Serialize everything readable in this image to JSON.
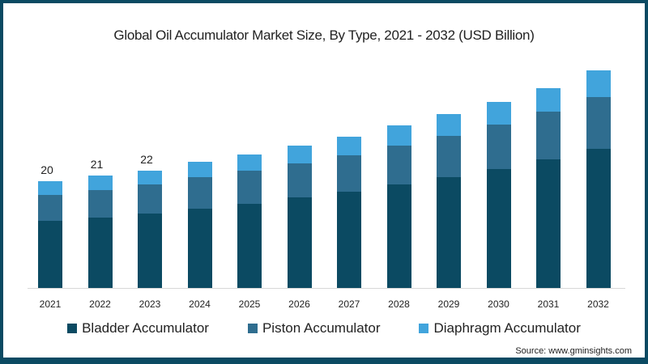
{
  "title": "Global Oil Accumulator Market Size, By Type, 2021 - 2032 (USD Billion)",
  "source": "Source: www.gminsights.com",
  "colors": {
    "bladder": "#0b4a62",
    "piston": "#2f6d8f",
    "diaphragm": "#41a4dc",
    "frame": "#0b4a62"
  },
  "legend": [
    {
      "label": "Bladder Accumulator",
      "color": "#0b4a62"
    },
    {
      "label": "Piston Accumulator",
      "color": "#2f6d8f"
    },
    {
      "label": "Diaphragm Accumulator",
      "color": "#41a4dc"
    }
  ],
  "chart_data": {
    "type": "bar",
    "stacked": true,
    "title": "Global Oil Accumulator Market Size, By Type, 2021 - 2032 (USD Billion)",
    "xlabel": "",
    "ylabel": "USD Billion",
    "categories": [
      "2021",
      "2022",
      "2023",
      "2024",
      "2025",
      "2026",
      "2027",
      "2028",
      "2029",
      "2030",
      "2031",
      "2032"
    ],
    "series": [
      {
        "name": "Bladder Accumulator",
        "values": [
          12.6,
          13.2,
          14.0,
          14.9,
          15.8,
          16.9,
          18.1,
          19.4,
          20.8,
          22.3,
          24.1,
          26.1
        ]
      },
      {
        "name": "Piston Accumulator",
        "values": [
          4.8,
          5.2,
          5.4,
          5.8,
          6.2,
          6.4,
          6.8,
          7.3,
          7.7,
          8.3,
          8.9,
          9.6
        ]
      },
      {
        "name": "Diaphragm Accumulator",
        "values": [
          2.6,
          2.6,
          2.6,
          2.9,
          3.0,
          3.4,
          3.4,
          3.7,
          4.1,
          4.3,
          4.5,
          5.0
        ]
      }
    ],
    "totals_labeled": {
      "2021": 20,
      "2022": 21,
      "2023": 22
    },
    "grid": false,
    "legend_position": "bottom",
    "ylim": [
      0,
      42
    ]
  }
}
